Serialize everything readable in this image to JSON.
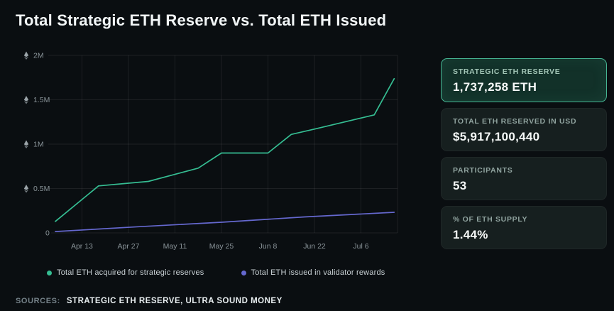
{
  "header": {
    "title": "Total Strategic ETH Reserve vs. Total ETH Issued"
  },
  "chart_data": {
    "type": "line",
    "title": "Total Strategic ETH Reserve vs. Total ETH Issued",
    "grid": true,
    "legend_position": "bottom",
    "x_unit": "days since Apr 5",
    "xlim": [
      0,
      103
    ],
    "ylim": [
      0,
      2000000
    ],
    "y_ticks": [
      {
        "value": 0,
        "label": "0",
        "eth_icon": false
      },
      {
        "value": 500000,
        "label": "0.5M",
        "eth_icon": true
      },
      {
        "value": 1000000,
        "label": "1M",
        "eth_icon": true
      },
      {
        "value": 1500000,
        "label": "1.5M",
        "eth_icon": true
      },
      {
        "value": 2000000,
        "label": "2M",
        "eth_icon": true
      }
    ],
    "x_ticks": [
      {
        "day": 8,
        "label": "Apr 13"
      },
      {
        "day": 22,
        "label": "Apr 27"
      },
      {
        "day": 36,
        "label": "May 11"
      },
      {
        "day": 50,
        "label": "May 25"
      },
      {
        "day": 64,
        "label": "Jun 8"
      },
      {
        "day": 78,
        "label": "Jun 22"
      },
      {
        "day": 92,
        "label": "Jul 6"
      }
    ],
    "series": [
      {
        "name": "Total ETH acquired for strategic reserves",
        "color": "#35bd92",
        "points": [
          [
            0,
            130000
          ],
          [
            13,
            530000
          ],
          [
            22,
            560000
          ],
          [
            28,
            580000
          ],
          [
            43,
            730000
          ],
          [
            50,
            900000
          ],
          [
            64,
            900000
          ],
          [
            71,
            1110000
          ],
          [
            78,
            1170000
          ],
          [
            96,
            1330000
          ],
          [
            102,
            1737258
          ]
        ]
      },
      {
        "name": "Total ETH issued in validator rewards",
        "color": "#6568cf",
        "points": [
          [
            0,
            15000
          ],
          [
            25,
            70000
          ],
          [
            50,
            120000
          ],
          [
            75,
            180000
          ],
          [
            102,
            232000
          ]
        ]
      }
    ]
  },
  "stats": {
    "cards": [
      {
        "label": "STRATEGIC ETH RESERVE",
        "value": "1,737,258 ETH",
        "highlight": true
      },
      {
        "label": "TOTAL ETH RESERVED IN USD",
        "value": "$5,917,100,440",
        "highlight": false
      },
      {
        "label": "PARTICIPANTS",
        "value": "53",
        "highlight": false
      },
      {
        "label": "% OF ETH SUPPLY",
        "value": "1.44%",
        "highlight": false
      }
    ]
  },
  "footer": {
    "sources_label": "SOURCES:",
    "sources_value": "STRATEGIC ETH RESERVE, ULTRA SOUND MONEY"
  },
  "colors": {
    "background": "#0a0e11",
    "accent_green": "#35bd92",
    "accent_purple": "#6568cf",
    "grid": "rgba(255,255,255,0.08)",
    "tick_text": "#8a9499",
    "eth_icon": "#9ba4a9",
    "highlight_card_border": "#46b593"
  }
}
